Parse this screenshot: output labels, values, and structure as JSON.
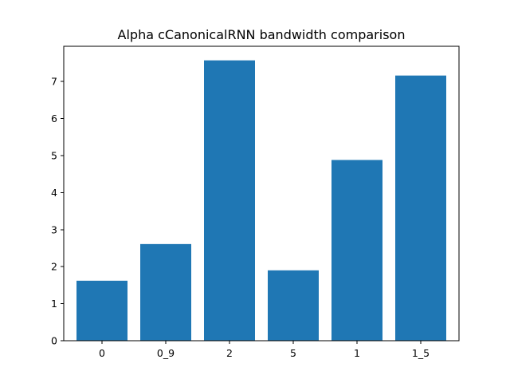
{
  "chart_data": {
    "type": "bar",
    "title": "Alpha cCanonicalRNN bandwidth comparison",
    "xlabel": "",
    "ylabel": "",
    "categories": [
      "0",
      "0_9",
      "2",
      "5",
      "1",
      "1_5"
    ],
    "values": [
      1.62,
      2.61,
      7.57,
      1.9,
      4.88,
      7.16
    ],
    "ylim": [
      0,
      7.95
    ],
    "yticks": [
      0,
      1,
      2,
      3,
      4,
      5,
      6,
      7
    ],
    "grid": false,
    "legend": "none",
    "bar_color": "#1f77b4"
  }
}
